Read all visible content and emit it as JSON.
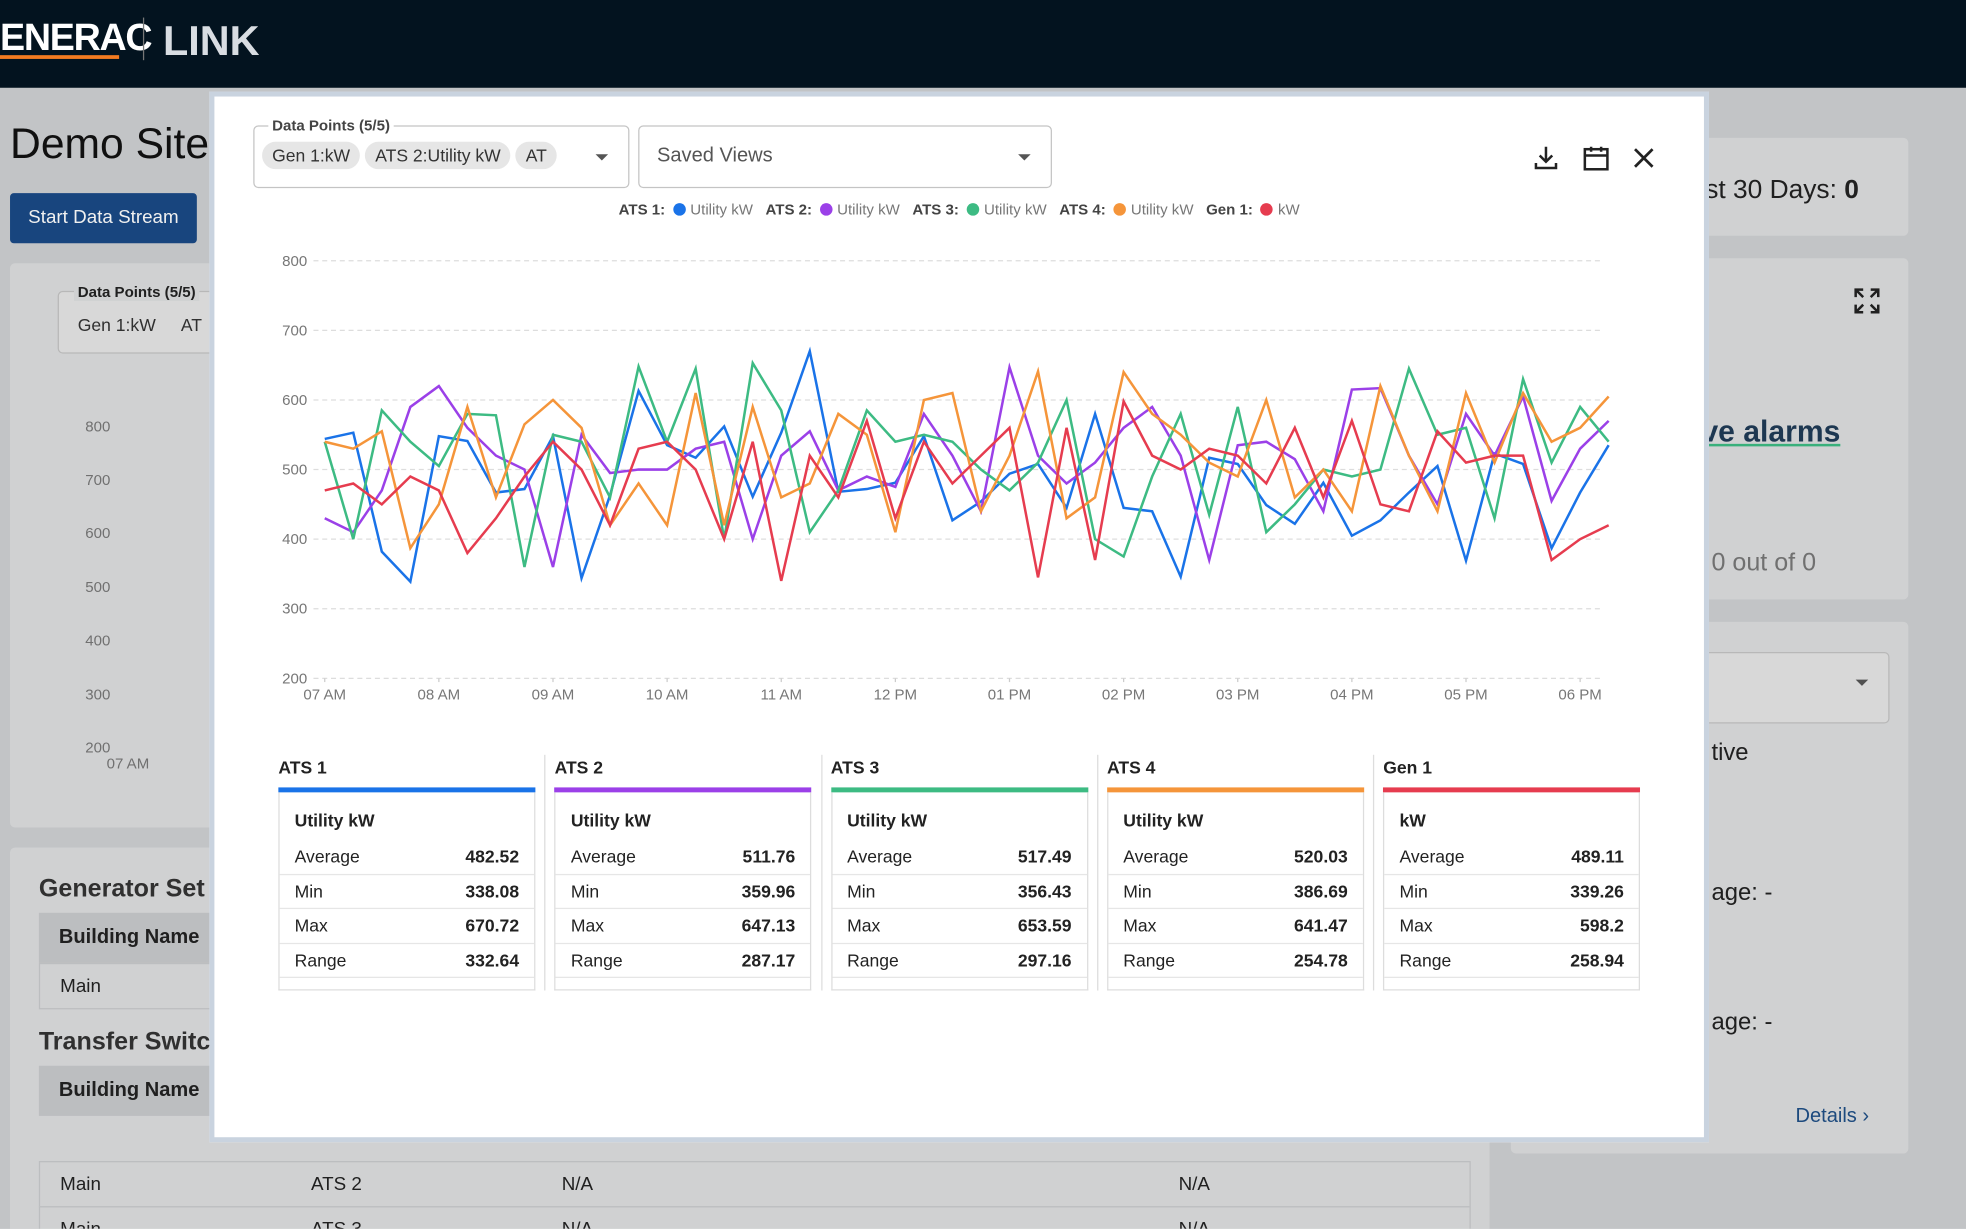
{
  "header": {
    "brand": "ENERAC",
    "product": "LINK"
  },
  "background": {
    "site_title": "Demo Site",
    "start_button": "Start Data Stream",
    "data_points_label": "Data Points (5/5)",
    "chips": [
      "Gen 1:kW",
      "AT"
    ],
    "yticks": [
      "800",
      "700",
      "600",
      "500",
      "400",
      "300",
      "200"
    ],
    "xtick": "07 AM",
    "generator_section": "Generator Set",
    "building_name": "Building Name",
    "main": "Main",
    "transfer_section": "Transfer Switc",
    "table_rows": [
      [
        "Main",
        "ATS 2",
        "N/A",
        "N/A"
      ],
      [
        "Main",
        "ATS 3",
        "N/A",
        "N/A"
      ]
    ],
    "last30": "st 30 Days:",
    "last30_value": "0",
    "alarms": "ve alarms",
    "alarm_count": "0 out of 0",
    "active": "tive",
    "age1": "age: -",
    "age2": "age: -",
    "details": "Details"
  },
  "modal": {
    "data_points_label": "Data Points (5/5)",
    "chips": [
      "Gen 1:kW",
      "ATS 2:Utility kW",
      "AT"
    ],
    "saved_views": "Saved Views"
  },
  "chart_data": {
    "type": "line",
    "x": [
      7,
      7.25,
      7.5,
      7.75,
      8,
      8.25,
      8.5,
      8.75,
      9,
      9.25,
      9.5,
      9.75,
      10,
      10.25,
      10.5,
      10.75,
      11,
      11.25,
      11.5,
      11.75,
      12,
      12.25,
      12.5,
      12.75,
      13,
      13.25,
      13.5,
      13.75,
      14,
      14.25,
      14.5,
      14.75,
      15,
      15.25,
      15.5,
      15.75,
      16,
      16.25,
      16.5,
      16.75,
      17,
      17.25,
      17.5,
      17.75,
      18,
      18.25
    ],
    "xlim": [
      7,
      18.25
    ],
    "xticks": [
      {
        "value": 7,
        "label": "07 AM"
      },
      {
        "value": 8,
        "label": "08 AM"
      },
      {
        "value": 9,
        "label": "09 AM"
      },
      {
        "value": 10,
        "label": "10 AM"
      },
      {
        "value": 11,
        "label": "11 AM"
      },
      {
        "value": 12,
        "label": "12 PM"
      },
      {
        "value": 13,
        "label": "01 PM"
      },
      {
        "value": 14,
        "label": "02 PM"
      },
      {
        "value": 15,
        "label": "03 PM"
      },
      {
        "value": 16,
        "label": "04 PM"
      },
      {
        "value": 17,
        "label": "05 PM"
      },
      {
        "value": 18,
        "label": "06 PM"
      }
    ],
    "ylim": [
      200,
      800
    ],
    "yticks": [
      200,
      300,
      400,
      500,
      600,
      700,
      800
    ],
    "grid": true,
    "series": [
      {
        "name": "ATS 1",
        "legend_label": "ATS 1:",
        "unit": "Utility kW",
        "color": "#1a73e8",
        "values": [
          544,
          553,
          382,
          339,
          548,
          541,
          467,
          472,
          548,
          344,
          463,
          613,
          535,
          517,
          562,
          461,
          553,
          670,
          468,
          472,
          481,
          548,
          427,
          454,
          494,
          508,
          445,
          580,
          445,
          440,
          346,
          517,
          508,
          449,
          422,
          481,
          405,
          427,
          467,
          505,
          369,
          523,
          508,
          387,
          467,
          535
        ]
      },
      {
        "name": "ATS 2",
        "legend_label": "ATS 2:",
        "unit": "Utility kW",
        "color": "#9b40e8",
        "values": [
          430,
          410,
          470,
          590,
          620,
          560,
          520,
          500,
          360,
          550,
          495,
          500,
          500,
          530,
          540,
          400,
          520,
          555,
          470,
          490,
          475,
          580,
          520,
          440,
          647,
          520,
          480,
          510,
          560,
          590,
          520,
          370,
          535,
          540,
          515,
          440,
          615,
          617,
          520,
          450,
          580,
          520,
          605,
          455,
          530,
          570
        ]
      },
      {
        "name": "ATS 3",
        "legend_label": "ATS 3:",
        "unit": "Utility kW",
        "color": "#3dbb83",
        "values": [
          540,
          400,
          585,
          540,
          505,
          580,
          578,
          360,
          550,
          540,
          460,
          648,
          540,
          645,
          400,
          653,
          585,
          410,
          470,
          585,
          540,
          550,
          540,
          500,
          470,
          510,
          600,
          400,
          375,
          490,
          580,
          435,
          590,
          410,
          450,
          500,
          490,
          500,
          645,
          550,
          560,
          430,
          630,
          510,
          590,
          540
        ]
      },
      {
        "name": "ATS 4",
        "legend_label": "ATS 4:",
        "unit": "Utility kW",
        "color": "#f5953a",
        "values": [
          540,
          530,
          555,
          387,
          450,
          590,
          460,
          565,
          600,
          560,
          420,
          480,
          420,
          610,
          420,
          590,
          460,
          480,
          580,
          550,
          410,
          600,
          610,
          440,
          520,
          641,
          430,
          460,
          640,
          580,
          550,
          510,
          490,
          600,
          460,
          500,
          440,
          620,
          520,
          440,
          610,
          510,
          610,
          540,
          560,
          605
        ]
      },
      {
        "name": "Gen 1",
        "legend_label": "Gen 1:",
        "unit": "kW",
        "color": "#e63c4f",
        "values": [
          470,
          480,
          450,
          490,
          470,
          380,
          430,
          490,
          540,
          500,
          420,
          530,
          540,
          500,
          400,
          540,
          340,
          520,
          460,
          570,
          430,
          540,
          480,
          520,
          560,
          345,
          560,
          370,
          598,
          520,
          500,
          530,
          520,
          480,
          560,
          460,
          570,
          450,
          440,
          555,
          510,
          520,
          520,
          370,
          400,
          420
        ]
      }
    ]
  },
  "stats": {
    "labels": [
      "Average",
      "Min",
      "Max",
      "Range"
    ],
    "values": [
      [
        482.52,
        338.08,
        670.72,
        332.64
      ],
      [
        511.76,
        359.96,
        647.13,
        287.17
      ],
      [
        517.49,
        356.43,
        653.59,
        297.16
      ],
      [
        520.03,
        386.69,
        641.47,
        254.78
      ],
      [
        489.11,
        339.26,
        598.2,
        258.94
      ]
    ]
  }
}
